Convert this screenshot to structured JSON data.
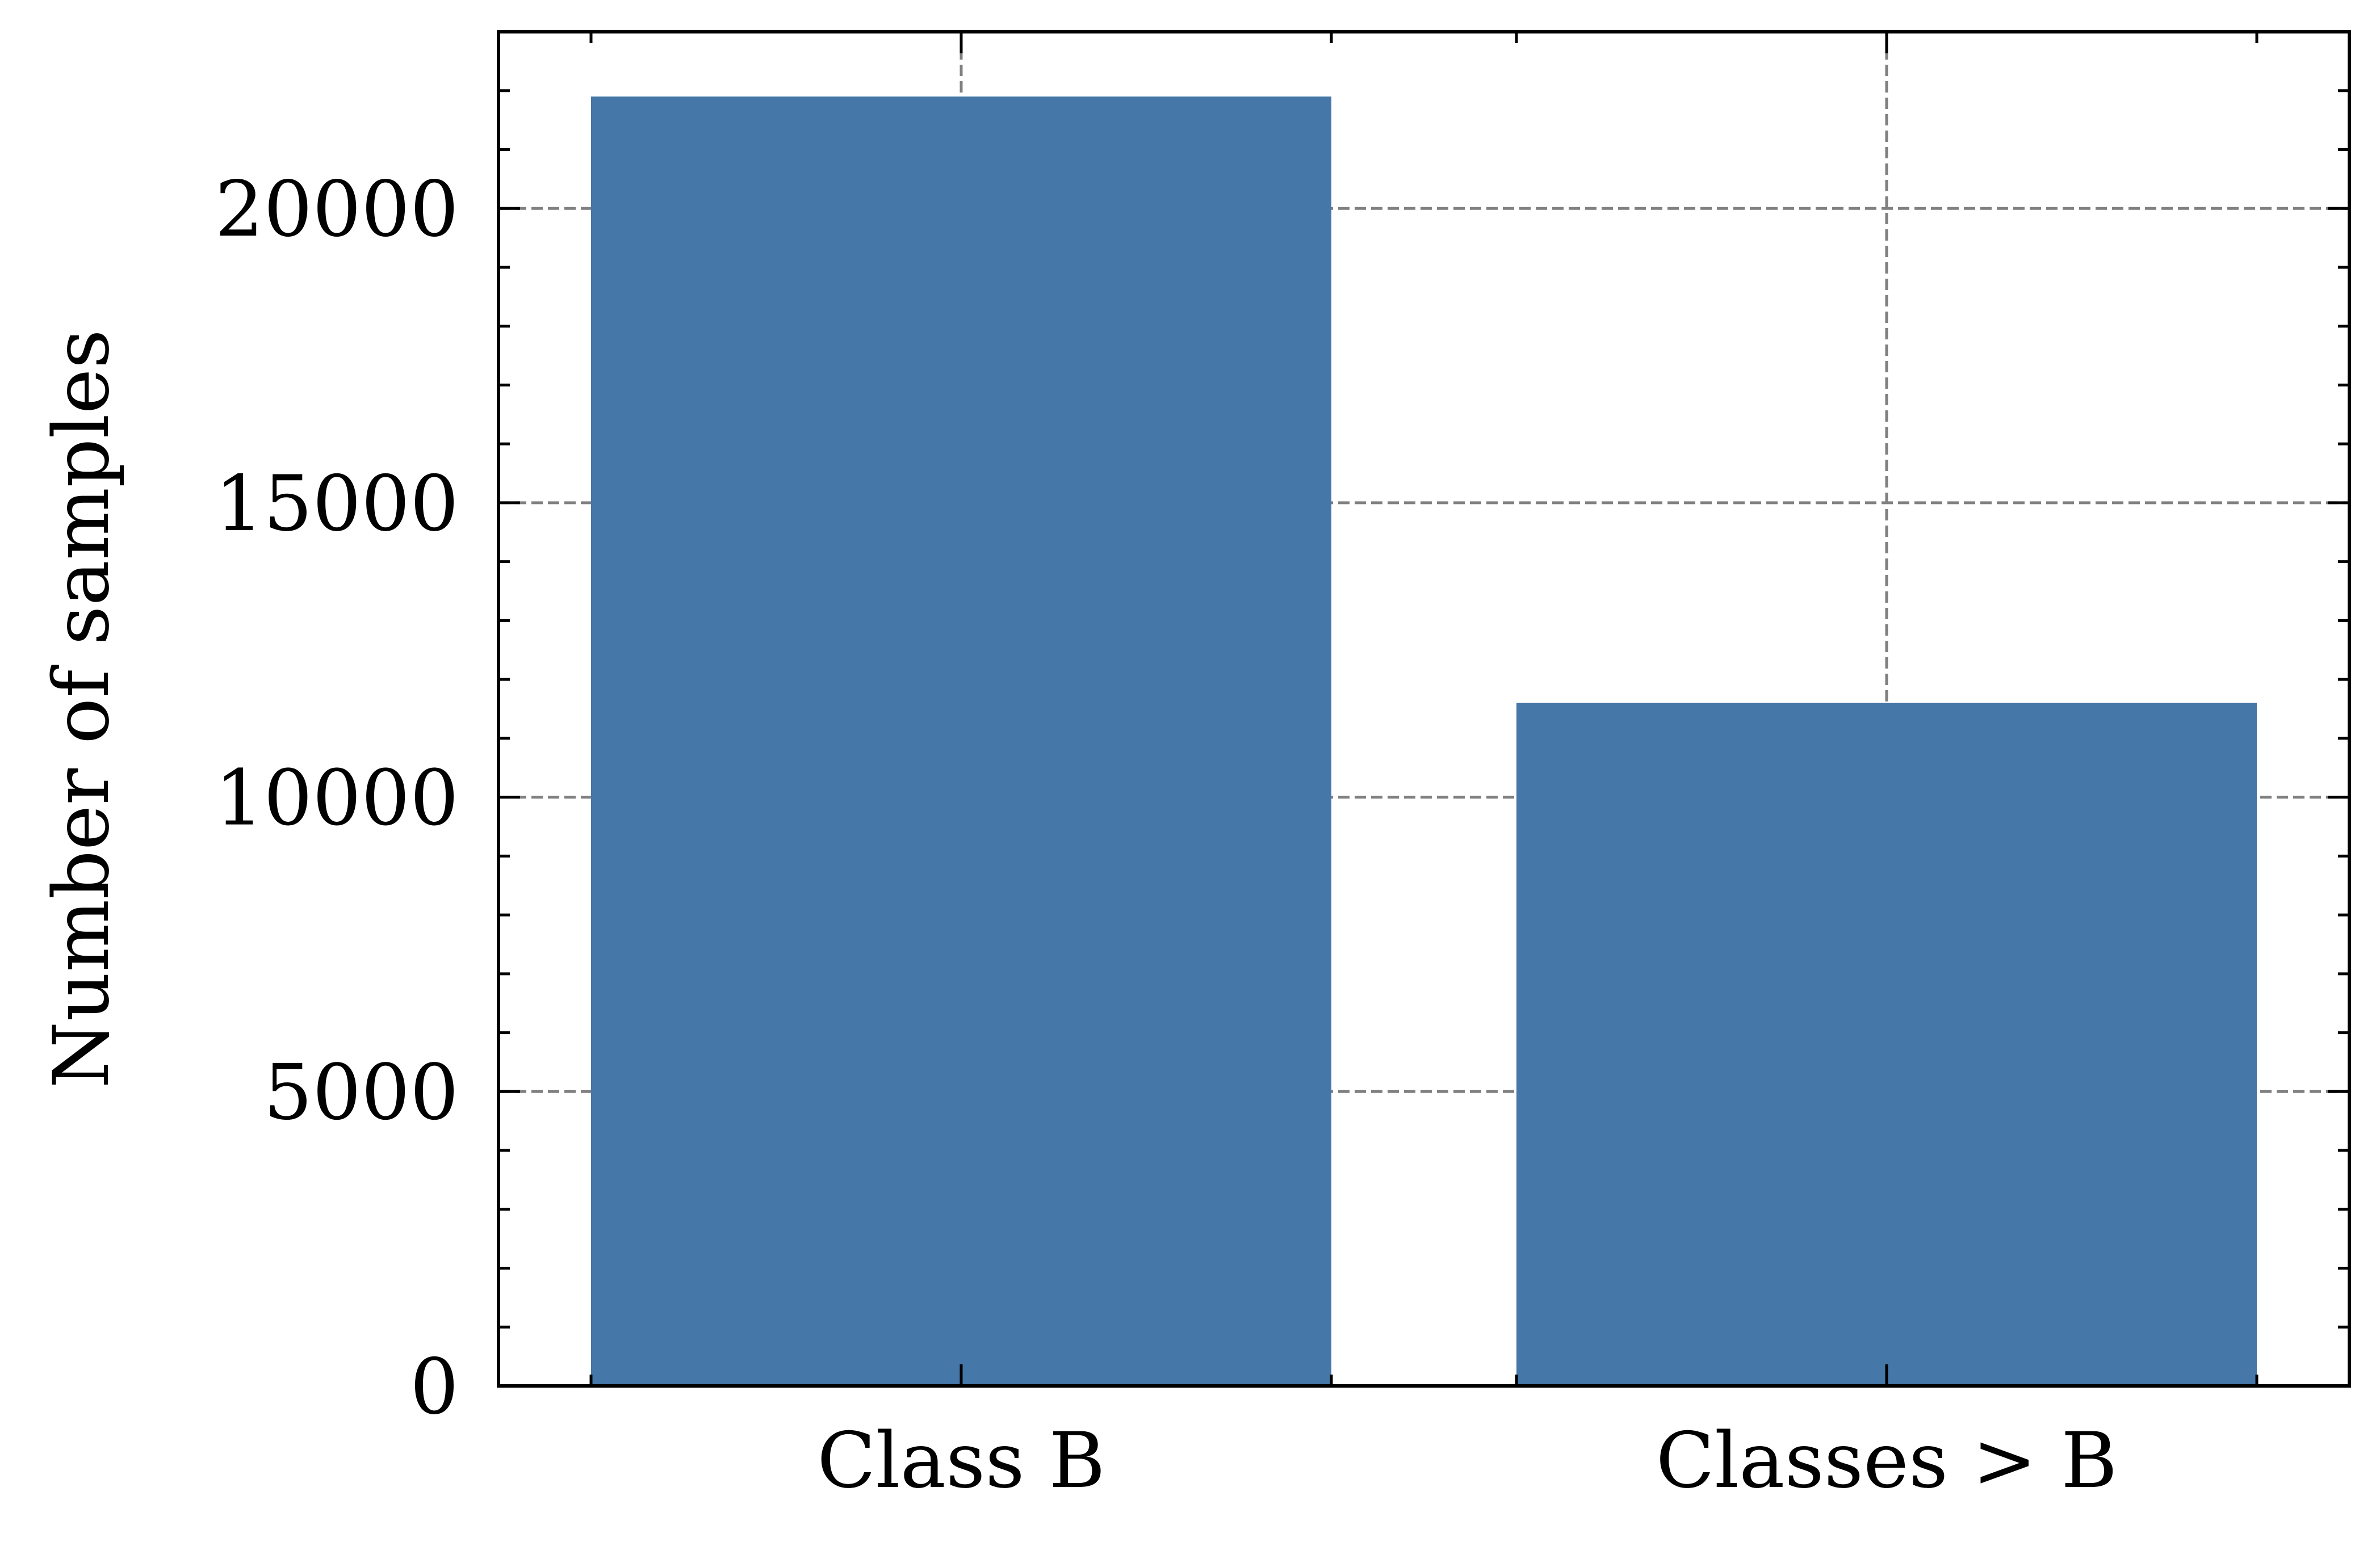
{
  "chart_data": {
    "type": "bar",
    "categories": [
      "Class B",
      "Classes > B"
    ],
    "values": [
      21900,
      11600
    ],
    "title": "",
    "xlabel": "",
    "ylabel": "Number of samples",
    "ylim": [
      0,
      23000
    ],
    "yticks": [
      0,
      5000,
      10000,
      15000,
      20000
    ],
    "ytick_labels": [
      "0",
      "5000",
      "10000",
      "15000",
      "20000"
    ],
    "y_minor_step": 1000,
    "grid": true,
    "bar_color": "#4577a8",
    "grid_color": "#808080"
  }
}
